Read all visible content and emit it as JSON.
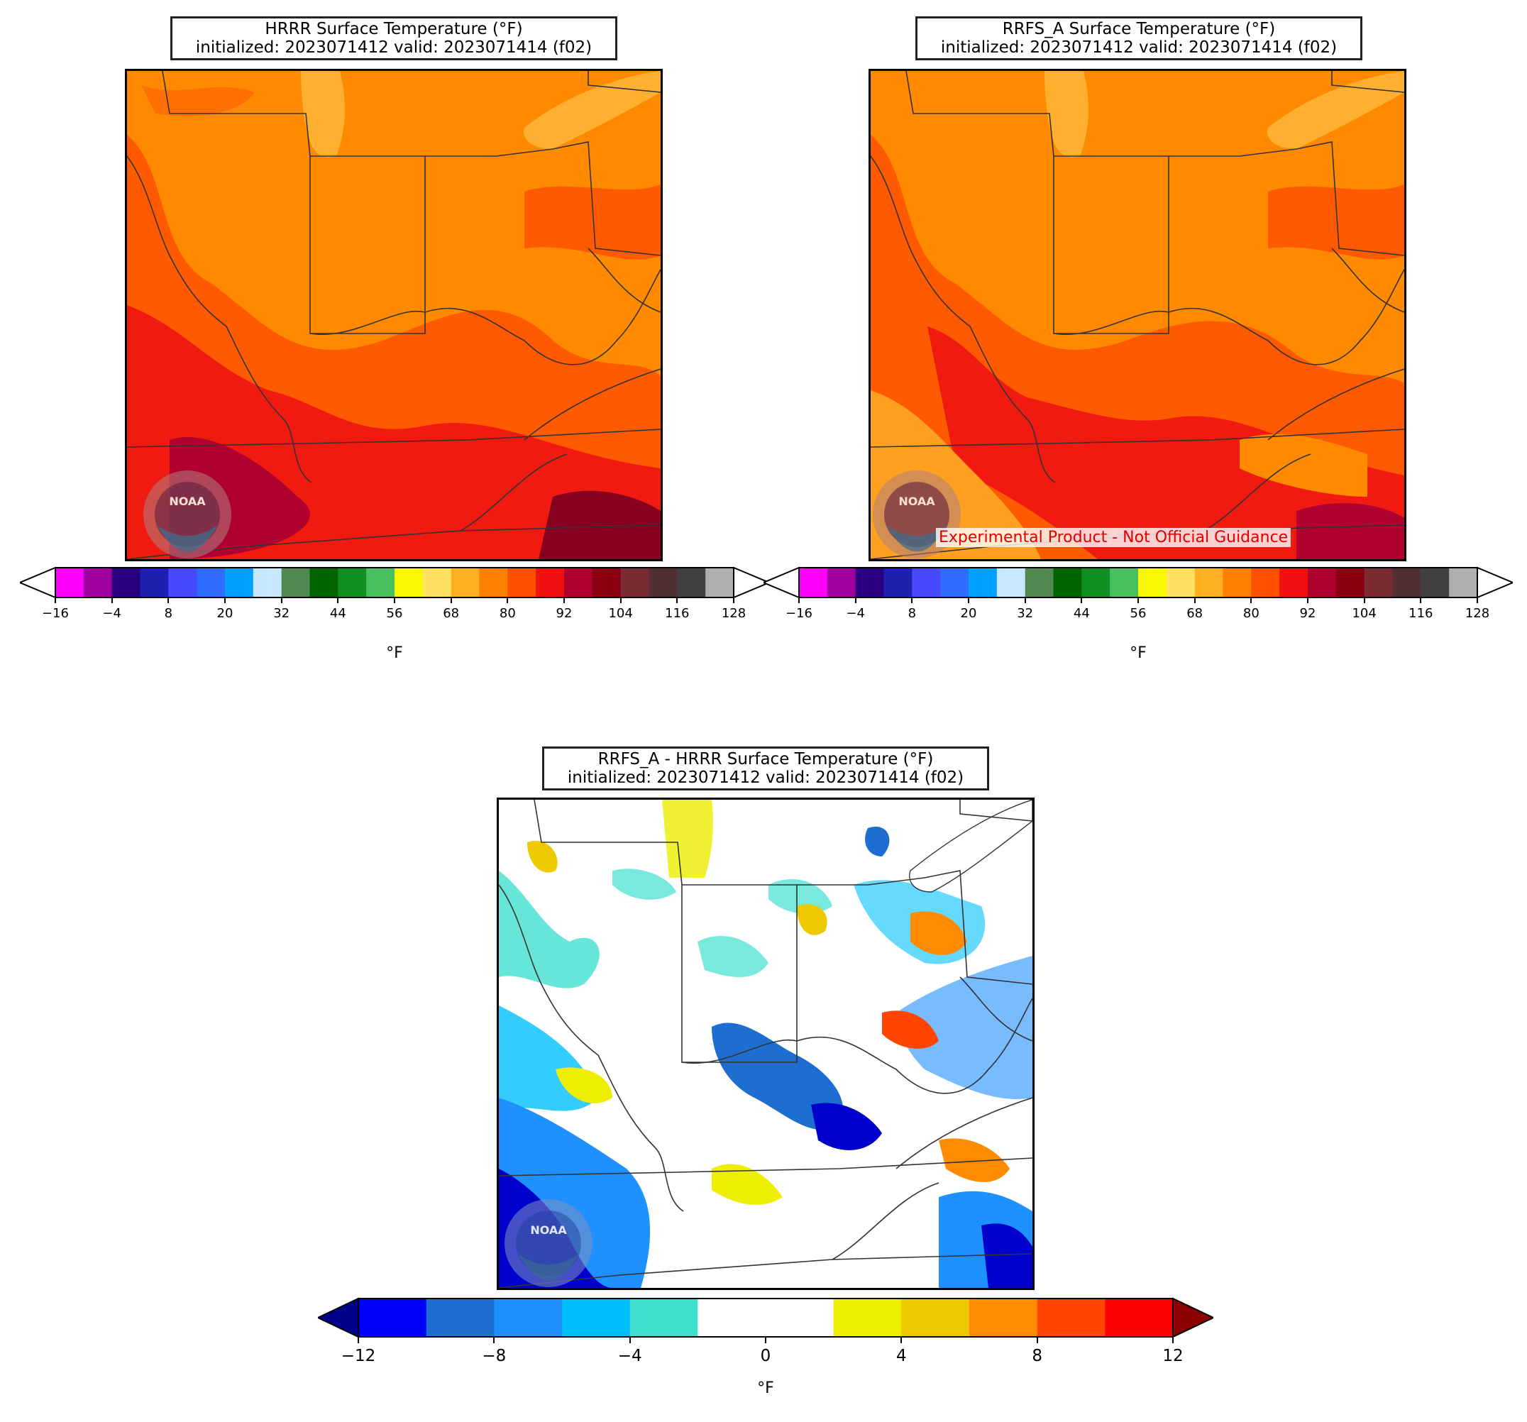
{
  "panels": [
    {
      "id": "hrrr",
      "title_line1": "HRRR Surface Temperature (°F)",
      "title_line2": "initialized: 2023071412 valid: 2023071414 (f02)"
    },
    {
      "id": "rrfs",
      "title_line1": "RRFS_A Surface Temperature (°F)",
      "title_line2": "initialized: 2023071412 valid: 2023071414 (f02)",
      "watermark": "Experimental Product - Not Official Guidance"
    },
    {
      "id": "diff",
      "title_line1": "RRFS_A - HRRR Surface Temperature (°F)",
      "title_line2": "initialized: 2023071412 valid: 2023071414 (f02)"
    }
  ],
  "logo_text": "NOAA",
  "temp_colorbar": {
    "unit": "°F",
    "ticks": [
      "−16",
      "−4",
      "8",
      "20",
      "32",
      "44",
      "56",
      "68",
      "80",
      "92",
      "104",
      "116",
      "128"
    ],
    "colors": [
      "#ff00ff",
      "#a000a0",
      "#2a0080",
      "#2020b0",
      "#4848ff",
      "#2f6cff",
      "#00a0ff",
      "#c8e8ff",
      "#508850",
      "#006400",
      "#109020",
      "#48c060",
      "#f8f800",
      "#ffe060",
      "#ffb020",
      "#ff8000",
      "#ff5000",
      "#f01010",
      "#b00030",
      "#880010",
      "#7a2a30",
      "#503030",
      "#404040",
      "#b0b0b0"
    ]
  },
  "diff_colorbar": {
    "unit": "°F",
    "ticks": [
      "−12",
      "−8",
      "−4",
      "0",
      "4",
      "8",
      "12"
    ],
    "under_color": "#00008b",
    "over_color": "#8b0000",
    "colors": [
      "#0000ff",
      "#1e6ed2",
      "#1e90ff",
      "#00bfff",
      "#40e0d0",
      "#ffffff",
      "#ffffff",
      "#eeee00",
      "#eec900",
      "#ff8c00",
      "#ff4500",
      "#ff0000"
    ]
  }
}
